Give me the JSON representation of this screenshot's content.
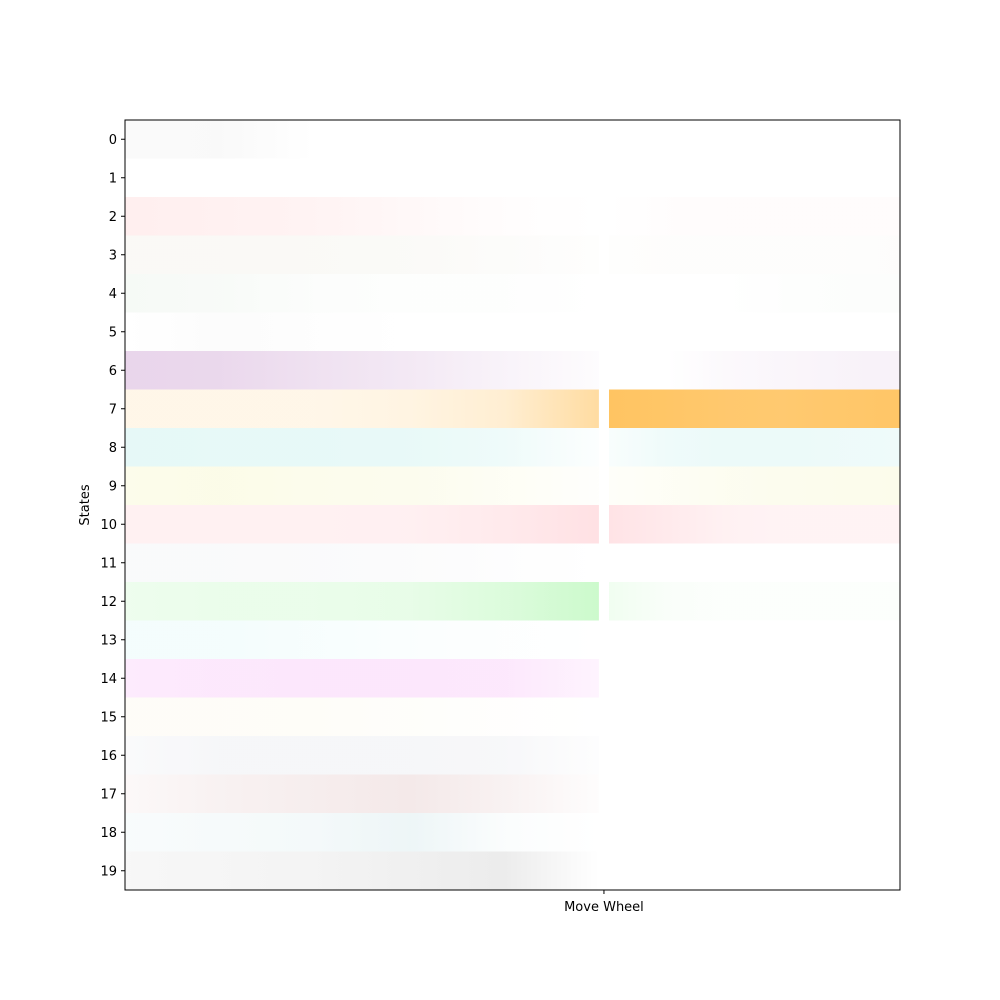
{
  "chart_data": {
    "type": "heatmap",
    "title": "",
    "xlabel": "",
    "ylabel": "States",
    "x_tick_labels": [
      "Move Wheel"
    ],
    "y_tick_labels": [
      "0",
      "1",
      "2",
      "3",
      "4",
      "5",
      "6",
      "7",
      "8",
      "9",
      "10",
      "11",
      "12",
      "13",
      "14",
      "15",
      "16",
      "17",
      "18",
      "19"
    ],
    "ylim": [
      19,
      0
    ],
    "grid": false,
    "legend": "none",
    "event_position_fraction": 0.618,
    "rows": [
      {
        "state": 0,
        "color": "#9e9e9e",
        "pre": [
          0.05,
          0.06,
          0.0,
          0.0,
          0.0,
          0.0
        ],
        "post": [
          0.0,
          0.0,
          0.0,
          0.0,
          0.0,
          0.0
        ]
      },
      {
        "state": 1,
        "color": "#9e9e9e",
        "pre": [
          0.0,
          0.0,
          0.0,
          0.0,
          0.0,
          0.0
        ],
        "post": [
          0.0,
          0.0,
          0.0,
          0.0,
          0.0,
          0.0
        ]
      },
      {
        "state": 2,
        "color": "#ff8a8a",
        "pre": [
          0.14,
          0.12,
          0.1,
          0.06,
          0.02,
          0.0
        ],
        "post": [
          0.0,
          0.02,
          0.03,
          0.03,
          0.03,
          0.03
        ]
      },
      {
        "state": 3,
        "color": "#c8c0a0",
        "pre": [
          0.1,
          0.1,
          0.09,
          0.08,
          0.05,
          0.02
        ],
        "post": [
          0.02,
          0.03,
          0.03,
          0.03,
          0.03,
          0.04
        ]
      },
      {
        "state": 4,
        "color": "#a8c8a8",
        "pre": [
          0.1,
          0.08,
          0.04,
          0.02,
          0.02,
          0.0
        ],
        "post": [
          0.0,
          0.0,
          0.0,
          0.02,
          0.03,
          0.04
        ]
      },
      {
        "state": 5,
        "color": "#b0b0b0",
        "pre": [
          0.0,
          0.04,
          0.02,
          0.0,
          0.0,
          0.0
        ],
        "post": [
          0.0,
          0.0,
          0.0,
          0.0,
          0.0,
          0.0
        ]
      },
      {
        "state": 6,
        "color": "#b06ab8",
        "pre": [
          0.28,
          0.26,
          0.2,
          0.15,
          0.08,
          0.02
        ],
        "post": [
          0.0,
          0.0,
          0.04,
          0.06,
          0.08,
          0.09
        ]
      },
      {
        "state": 7,
        "color": "#ffab1f",
        "pre": [
          0.1,
          0.1,
          0.1,
          0.13,
          0.2,
          0.42
        ],
        "post": [
          0.7,
          0.68,
          0.65,
          0.64,
          0.66,
          0.68
        ]
      },
      {
        "state": 8,
        "color": "#5fd6cc",
        "pre": [
          0.16,
          0.15,
          0.15,
          0.14,
          0.1,
          0.02
        ],
        "post": [
          0.04,
          0.1,
          0.12,
          0.12,
          0.11,
          0.1
        ]
      },
      {
        "state": 9,
        "color": "#e8e870",
        "pre": [
          0.14,
          0.16,
          0.13,
          0.12,
          0.07,
          0.02
        ],
        "post": [
          0.04,
          0.07,
          0.1,
          0.12,
          0.13,
          0.14
        ]
      },
      {
        "state": 10,
        "color": "#ff8a96",
        "pre": [
          0.12,
          0.12,
          0.12,
          0.13,
          0.18,
          0.26
        ],
        "post": [
          0.24,
          0.18,
          0.12,
          0.1,
          0.1,
          0.1
        ]
      },
      {
        "state": 11,
        "color": "#a0a4b8",
        "pre": [
          0.06,
          0.06,
          0.05,
          0.04,
          0.02,
          0.0
        ],
        "post": [
          0.0,
          0.0,
          0.0,
          0.0,
          0.0,
          0.0
        ]
      },
      {
        "state": 12,
        "color": "#6ef06e",
        "pre": [
          0.12,
          0.14,
          0.14,
          0.16,
          0.24,
          0.35
        ],
        "post": [
          0.1,
          0.04,
          0.02,
          0.02,
          0.02,
          0.02
        ]
      },
      {
        "state": 13,
        "color": "#8ee8e8",
        "pre": [
          0.1,
          0.1,
          0.07,
          0.04,
          0.02,
          0.0
        ],
        "post": [
          0.0,
          0.0,
          0.0,
          0.0,
          0.0,
          0.0
        ]
      },
      {
        "state": 14,
        "color": "#f070f0",
        "pre": [
          0.14,
          0.16,
          0.17,
          0.17,
          0.16,
          0.08
        ],
        "post": [
          0.0,
          0.0,
          0.0,
          0.0,
          0.0,
          0.0
        ]
      },
      {
        "state": 15,
        "color": "#f0e0a0",
        "pre": [
          0.08,
          0.08,
          0.07,
          0.05,
          0.02,
          0.0
        ],
        "post": [
          0.0,
          0.0,
          0.0,
          0.0,
          0.0,
          0.0
        ]
      },
      {
        "state": 16,
        "color": "#a8acc0",
        "pre": [
          0.06,
          0.1,
          0.1,
          0.1,
          0.09,
          0.02
        ],
        "post": [
          0.0,
          0.0,
          0.0,
          0.0,
          0.0,
          0.0
        ]
      },
      {
        "state": 17,
        "color": "#c89090",
        "pre": [
          0.06,
          0.12,
          0.16,
          0.2,
          0.12,
          0.02
        ],
        "post": [
          0.0,
          0.0,
          0.0,
          0.0,
          0.0,
          0.0
        ]
      },
      {
        "state": 18,
        "color": "#90c4cc",
        "pre": [
          0.06,
          0.08,
          0.1,
          0.16,
          0.04,
          0.0
        ],
        "post": [
          0.0,
          0.0,
          0.0,
          0.0,
          0.0,
          0.0
        ]
      },
      {
        "state": 19,
        "color": "#a0a0a0",
        "pre": [
          0.08,
          0.1,
          0.12,
          0.16,
          0.2,
          0.0
        ],
        "post": [
          0.0,
          0.0,
          0.0,
          0.0,
          0.0,
          0.0
        ]
      }
    ]
  }
}
